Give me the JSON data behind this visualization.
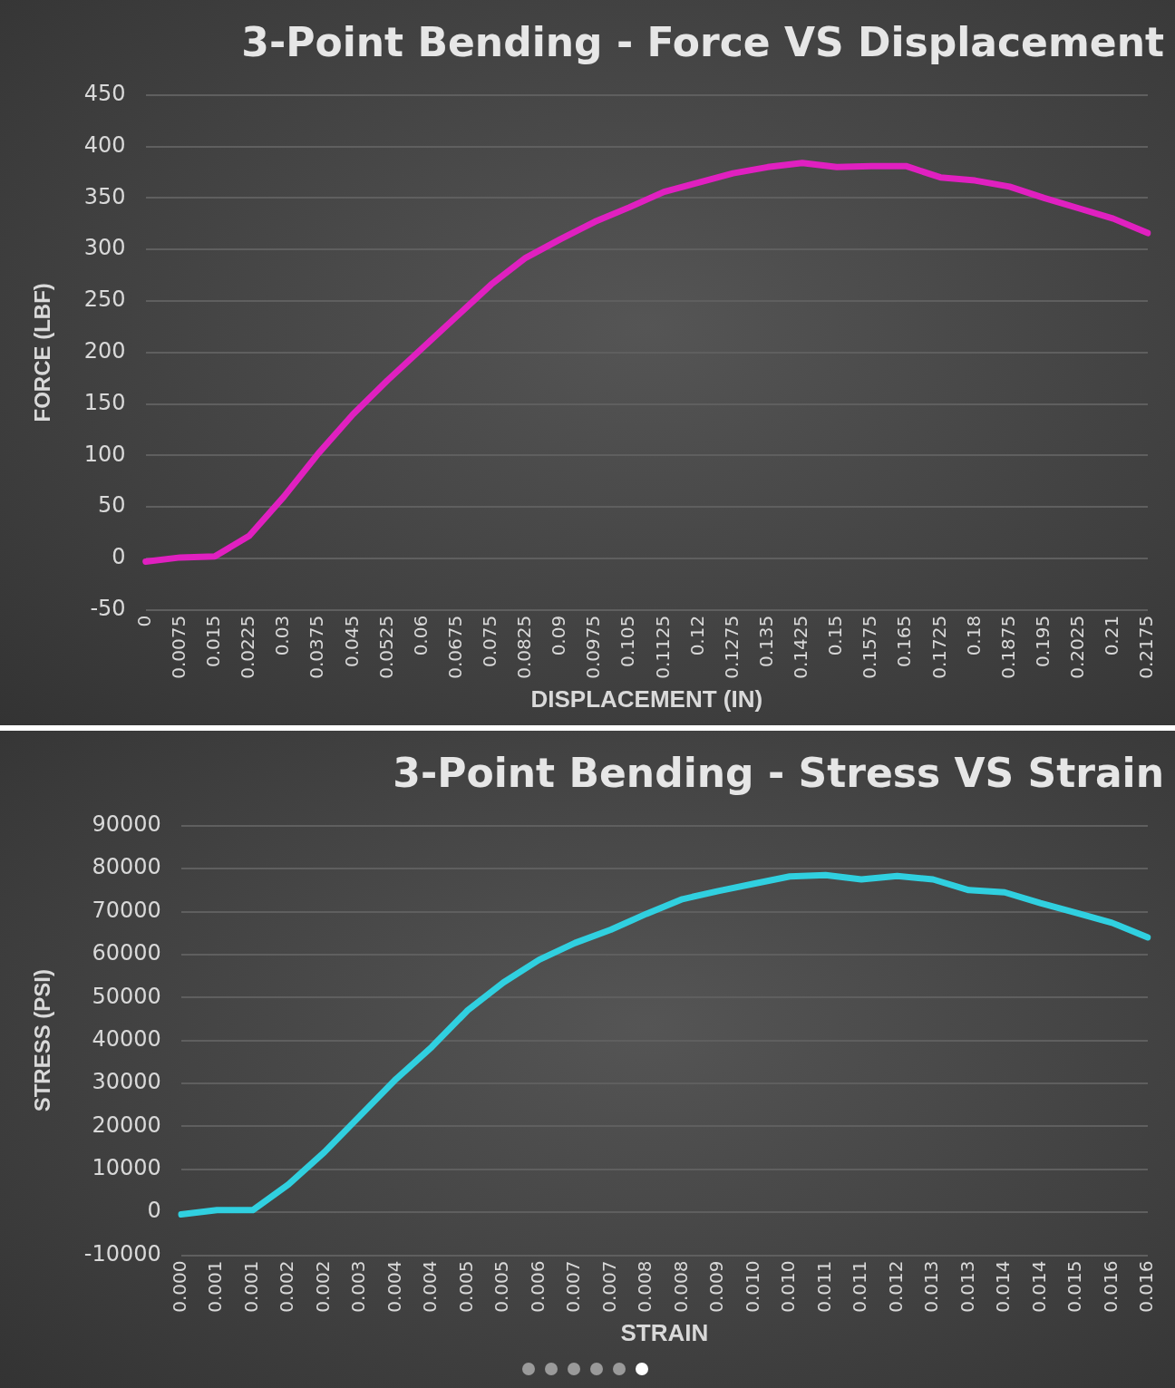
{
  "chart_data": [
    {
      "type": "line",
      "title": "3-Point Bending - Force VS Displacement",
      "xlabel": "DISPLACEMENT (IN)",
      "ylabel": "FORCE (LBF)",
      "categories": [
        "0",
        "0.0075",
        "0.015",
        "0.0225",
        "0.03",
        "0.0375",
        "0.045",
        "0.0525",
        "0.06",
        "0.0675",
        "0.075",
        "0.0825",
        "0.09",
        "0.0975",
        "0.105",
        "0.1125",
        "0.12",
        "0.1275",
        "0.135",
        "0.1425",
        "0.15",
        "0.1575",
        "0.165",
        "0.1725",
        "0.18",
        "0.1875",
        "0.195",
        "0.2025",
        "0.21",
        "0.2175"
      ],
      "series": [
        {
          "color": "#e020c0",
          "values": [
            -3,
            1,
            2,
            22,
            60,
            102,
            140,
            173,
            204,
            235,
            266,
            292,
            310,
            327,
            341,
            356,
            365,
            374,
            380,
            384,
            380,
            381,
            381,
            370,
            367,
            361,
            350,
            340,
            330,
            316
          ]
        }
      ],
      "ylim": [
        -50,
        450
      ],
      "yticks": [
        -50,
        0,
        50,
        100,
        150,
        200,
        250,
        300,
        350,
        400,
        450
      ],
      "grid": "y",
      "marker": "none"
    },
    {
      "type": "line",
      "title": "3-Point Bending - Stress VS Strain",
      "xlabel": "STRAIN",
      "ylabel": "STRESS (PSI)",
      "categories": [
        "0.000",
        "0.001",
        "0.001",
        "0.002",
        "0.002",
        "0.003",
        "0.004",
        "0.004",
        "0.005",
        "0.005",
        "0.006",
        "0.007",
        "0.007",
        "0.008",
        "0.008",
        "0.009",
        "0.010",
        "0.010",
        "0.011",
        "0.011",
        "0.012",
        "0.013",
        "0.013",
        "0.014",
        "0.014",
        "0.015",
        "0.016",
        "0.016"
      ],
      "series": [
        {
          "color": "#30d0e0",
          "values": [
            -500,
            500,
            500,
            6500,
            14000,
            22500,
            31000,
            38500,
            47000,
            53500,
            58800,
            62700,
            65800,
            69500,
            72900,
            74800,
            76500,
            78200,
            78500,
            77500,
            78300,
            77500,
            75000,
            74500,
            72000,
            69700,
            67400,
            64000
          ]
        }
      ],
      "ylim": [
        -10000,
        90000
      ],
      "yticks": [
        -10000,
        0,
        10000,
        20000,
        30000,
        40000,
        50000,
        60000,
        70000,
        80000,
        90000
      ],
      "grid": "y",
      "marker": "none"
    }
  ]
}
